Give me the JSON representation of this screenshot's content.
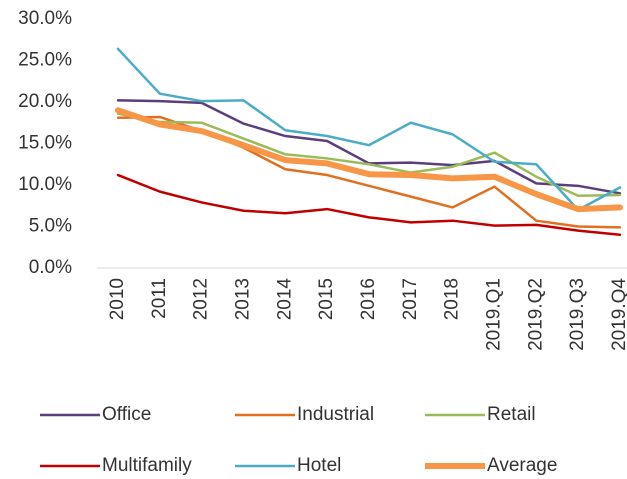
{
  "chart_data": {
    "type": "line",
    "categories": [
      "2010",
      "2011",
      "2012",
      "2013",
      "2014",
      "2015",
      "2016",
      "2017",
      "2018",
      "2019.Q1",
      "2019.Q2",
      "2019.Q3",
      "2019.Q4"
    ],
    "series": [
      {
        "name": "Office",
        "color": "#5b3f7a",
        "values": [
          20.2,
          20.1,
          19.9,
          17.4,
          15.9,
          15.3,
          12.6,
          12.7,
          12.4,
          12.9,
          10.2,
          9.9,
          9.0
        ]
      },
      {
        "name": "Industrial",
        "color": "#e07020",
        "values": [
          18.1,
          18.2,
          16.5,
          14.5,
          11.9,
          11.2,
          9.9,
          8.6,
          7.3,
          9.8,
          5.7,
          5.0,
          4.9
        ]
      },
      {
        "name": "Retail",
        "color": "#9bbb59",
        "values": [
          18.6,
          17.6,
          17.5,
          15.6,
          13.7,
          13.2,
          12.5,
          11.5,
          12.2,
          13.9,
          11.0,
          8.7,
          8.8
        ]
      },
      {
        "name": "Multifamily",
        "color": "#c00000",
        "values": [
          11.2,
          9.2,
          7.9,
          6.9,
          6.6,
          7.1,
          6.1,
          5.5,
          5.7,
          5.1,
          5.2,
          4.5,
          4.0
        ]
      },
      {
        "name": "Hotel",
        "color": "#4bacc6",
        "values": [
          26.4,
          21.0,
          20.1,
          20.2,
          16.6,
          15.9,
          14.8,
          17.5,
          16.1,
          12.8,
          12.5,
          7.0,
          9.7
        ]
      },
      {
        "name": "Average",
        "color": "#f79646",
        "values": [
          19.0,
          17.3,
          16.5,
          14.8,
          13.0,
          12.6,
          11.3,
          11.2,
          10.8,
          11.0,
          8.9,
          7.1,
          7.3
        ]
      }
    ],
    "ylim": [
      0,
      30
    ],
    "yticks": [
      {
        "value": 0,
        "label": "0.0%"
      },
      {
        "value": 5,
        "label": "5.0%"
      },
      {
        "value": 10,
        "label": "10.0%"
      },
      {
        "value": 15,
        "label": "15.0%"
      },
      {
        "value": 20,
        "label": "20.0%"
      },
      {
        "value": 25,
        "label": "25.0%"
      },
      {
        "value": 30,
        "label": "30.0%"
      }
    ],
    "legend": "bottom"
  }
}
